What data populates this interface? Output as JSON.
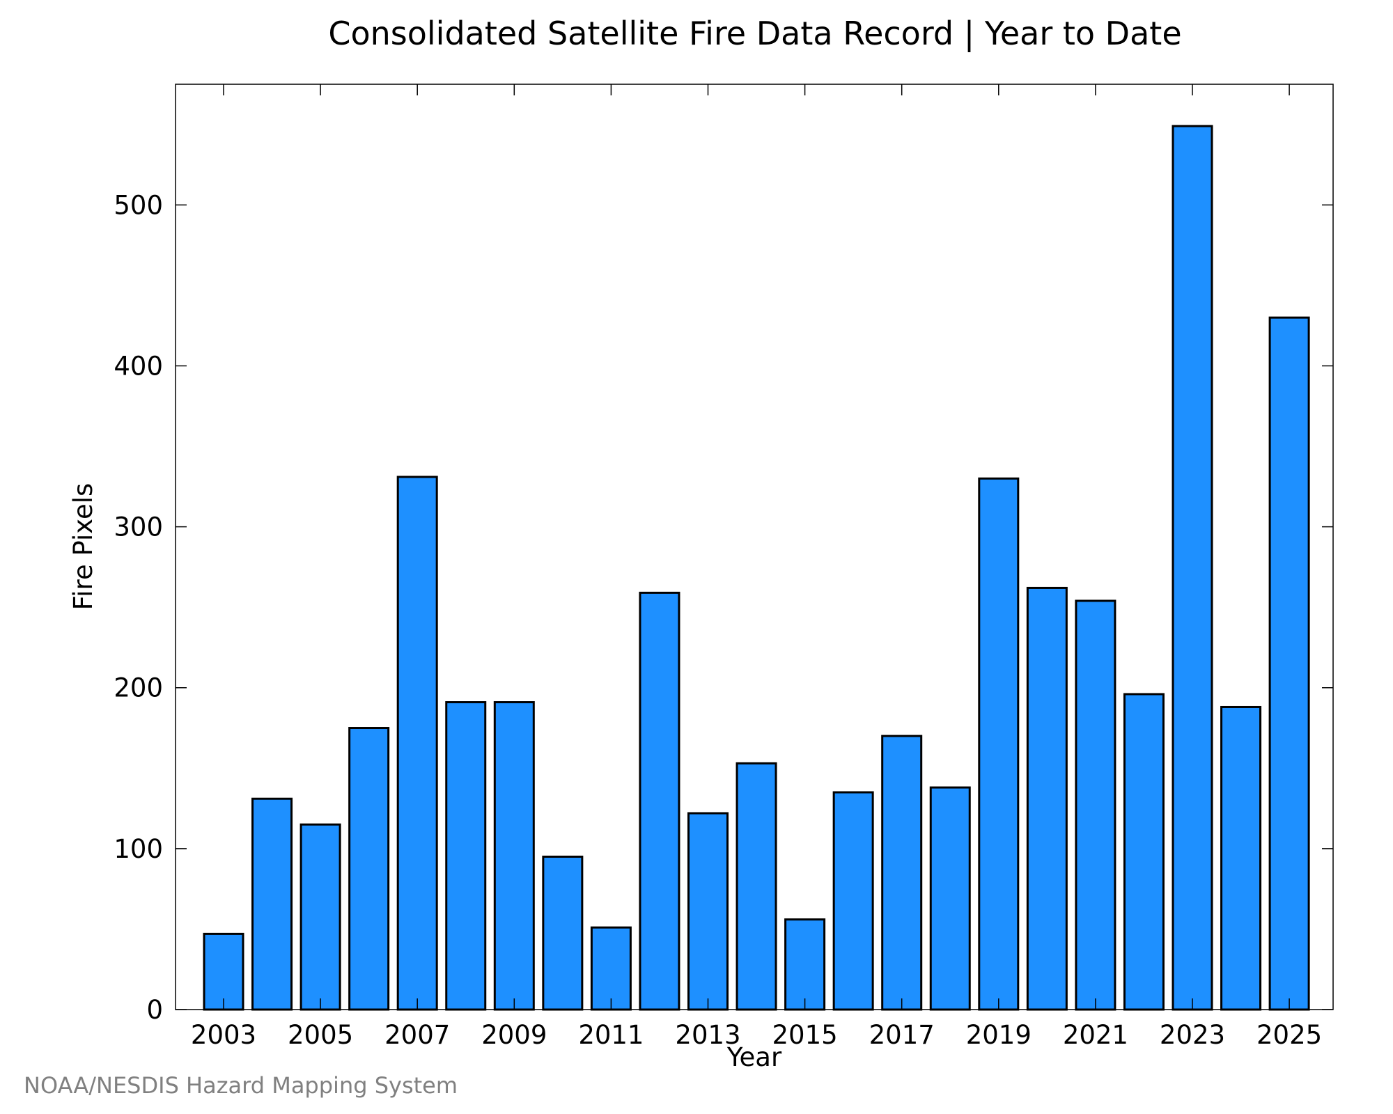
{
  "chart_data": {
    "type": "bar",
    "title": "Consolidated Satellite Fire Data Record | Year to Date",
    "xlabel": "Year",
    "ylabel": "Fire Pixels",
    "categories": [
      "2003",
      "2004",
      "2005",
      "2006",
      "2007",
      "2008",
      "2009",
      "2010",
      "2011",
      "2012",
      "2013",
      "2014",
      "2015",
      "2016",
      "2017",
      "2018",
      "2019",
      "2020",
      "2021",
      "2022",
      "2023",
      "2024",
      "2025"
    ],
    "values": [
      47,
      131,
      115,
      175,
      331,
      191,
      191,
      95,
      51,
      259,
      122,
      153,
      56,
      135,
      170,
      138,
      330,
      262,
      254,
      196,
      549,
      188,
      430
    ],
    "x_tick_labels": [
      "2003",
      "2005",
      "2007",
      "2009",
      "2011",
      "2013",
      "2015",
      "2017",
      "2019",
      "2021",
      "2023",
      "2025"
    ],
    "y_tick_labels": [
      "0",
      "100",
      "200",
      "300",
      "400",
      "500"
    ],
    "ylim": [
      0,
      575
    ],
    "grid": false,
    "bar_color": "#1e90ff",
    "bar_edge_color": "#000000"
  },
  "credit": "NOAA/NESDIS Hazard Mapping System"
}
